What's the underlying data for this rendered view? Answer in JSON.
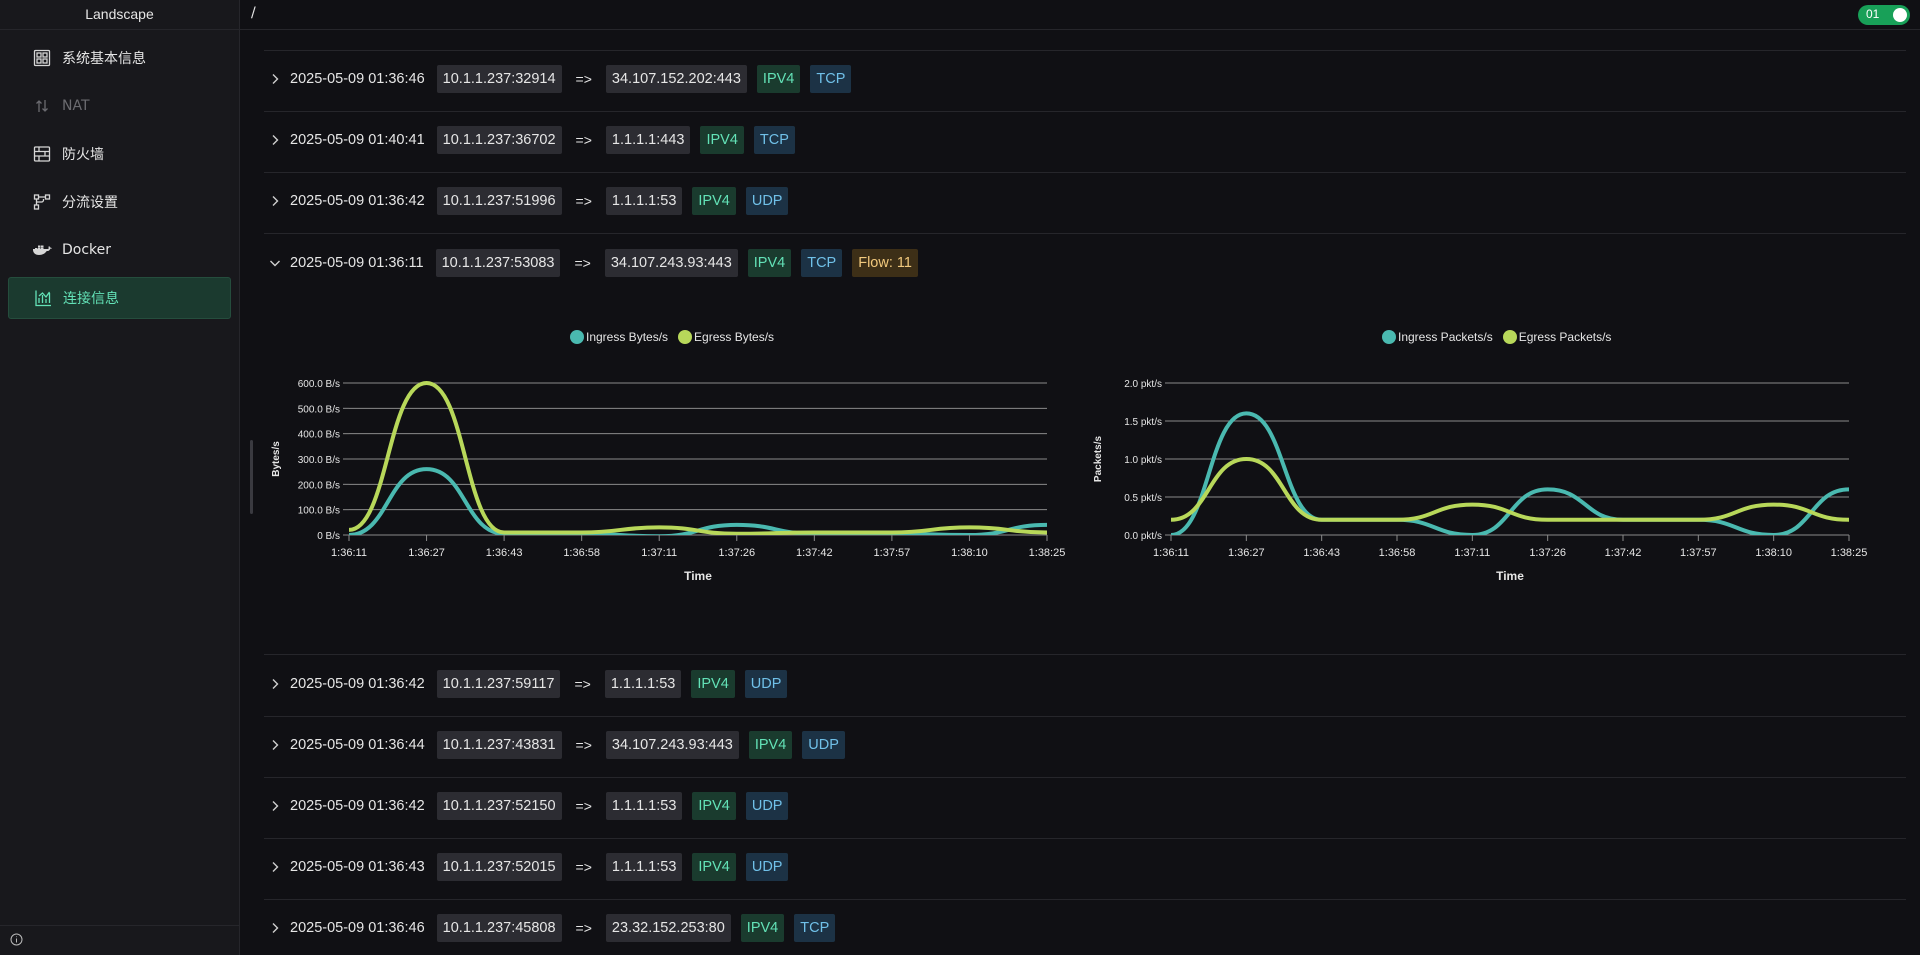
{
  "sidebar": {
    "brand": "Landscape",
    "items": [
      {
        "label": "系统基本信息",
        "icon": "dashboard-icon",
        "state": "normal"
      },
      {
        "label": "NAT",
        "icon": "nat-arrows-icon",
        "state": "disabled"
      },
      {
        "label": "防火墙",
        "icon": "firewall-icon",
        "state": "normal"
      },
      {
        "label": "分流设置",
        "icon": "flow-split-icon",
        "state": "normal"
      },
      {
        "label": "Docker",
        "icon": "docker-icon",
        "state": "normal"
      },
      {
        "label": "连接信息",
        "icon": "chart-icon",
        "state": "active"
      }
    ],
    "footer_icon": "info-icon"
  },
  "topbar": {
    "breadcrumb": "/",
    "toggle_label": "01"
  },
  "connections": [
    {
      "time": "2025-05-09 01:36:46",
      "src": "10.1.1.237:32914",
      "arrow": "=>",
      "dst": "34.107.152.202:443",
      "ip": "IPV4",
      "proto": "TCP"
    },
    {
      "time": "2025-05-09 01:40:41",
      "src": "10.1.1.237:36702",
      "arrow": "=>",
      "dst": "1.1.1.1:443",
      "ip": "IPV4",
      "proto": "TCP"
    },
    {
      "time": "2025-05-09 01:36:42",
      "src": "10.1.1.237:51996",
      "arrow": "=>",
      "dst": "1.1.1.1:53",
      "ip": "IPV4",
      "proto": "UDP"
    }
  ],
  "expanded": {
    "time": "2025-05-09 01:36:11",
    "src": "10.1.1.237:53083",
    "arrow": "=>",
    "dst": "34.107.243.93:443",
    "ip": "IPV4",
    "proto": "TCP",
    "flow": "Flow: 11"
  },
  "connections_after": [
    {
      "time": "2025-05-09 01:36:42",
      "src": "10.1.1.237:59117",
      "arrow": "=>",
      "dst": "1.1.1.1:53",
      "ip": "IPV4",
      "proto": "UDP"
    },
    {
      "time": "2025-05-09 01:36:44",
      "src": "10.1.1.237:43831",
      "arrow": "=>",
      "dst": "34.107.243.93:443",
      "ip": "IPV4",
      "proto": "UDP"
    },
    {
      "time": "2025-05-09 01:36:42",
      "src": "10.1.1.237:52150",
      "arrow": "=>",
      "dst": "1.1.1.1:53",
      "ip": "IPV4",
      "proto": "UDP"
    },
    {
      "time": "2025-05-09 01:36:43",
      "src": "10.1.1.237:52015",
      "arrow": "=>",
      "dst": "1.1.1.1:53",
      "ip": "IPV4",
      "proto": "UDP"
    },
    {
      "time": "2025-05-09 01:36:46",
      "src": "10.1.1.237:45808",
      "arrow": "=>",
      "dst": "23.32.152.253:80",
      "ip": "IPV4",
      "proto": "TCP"
    }
  ],
  "colors": {
    "ingress": "#4ab9b0",
    "egress": "#b8d85a",
    "accent": "#63e2b7"
  },
  "chart_data": [
    {
      "type": "line",
      "xlabel": "Time",
      "ylabel": "Bytes/s",
      "x": [
        "1:36:11",
        "1:36:27",
        "1:36:43",
        "1:36:58",
        "1:37:11",
        "1:37:26",
        "1:37:42",
        "1:37:57",
        "1:38:10",
        "1:38:25"
      ],
      "y_ticks": [
        "0 B/s",
        "100.0 B/s",
        "200.0 B/s",
        "300.0 B/s",
        "400.0 B/s",
        "500.0 B/s",
        "600.0 B/s"
      ],
      "ylim": [
        0,
        600
      ],
      "grid": true,
      "legend": "top-center",
      "series": [
        {
          "name": "Ingress Bytes/s",
          "values": [
            0,
            260,
            5,
            5,
            -5,
            40,
            5,
            5,
            0,
            40
          ]
        },
        {
          "name": "Egress Bytes/s",
          "values": [
            20,
            600,
            10,
            10,
            30,
            5,
            10,
            10,
            30,
            10
          ]
        }
      ]
    },
    {
      "type": "line",
      "xlabel": "Time",
      "ylabel": "Packets/s",
      "x": [
        "1:36:11",
        "1:36:27",
        "1:36:43",
        "1:36:58",
        "1:37:11",
        "1:37:26",
        "1:37:42",
        "1:37:57",
        "1:38:10",
        "1:38:25"
      ],
      "y_ticks": [
        "0.0 pkt/s",
        "0.5 pkt/s",
        "1.0 pkt/s",
        "1.5 pkt/s",
        "2.0 pkt/s"
      ],
      "ylim": [
        0,
        2
      ],
      "grid": true,
      "legend": "top-center",
      "series": [
        {
          "name": "Ingress Packets/s",
          "values": [
            0,
            1.6,
            0.2,
            0.2,
            0,
            0.6,
            0.2,
            0.2,
            0,
            0.6
          ]
        },
        {
          "name": "Egress Packets/s",
          "values": [
            0.2,
            1.0,
            0.2,
            0.2,
            0.4,
            0.2,
            0.2,
            0.2,
            0.4,
            0.2
          ]
        }
      ]
    }
  ]
}
